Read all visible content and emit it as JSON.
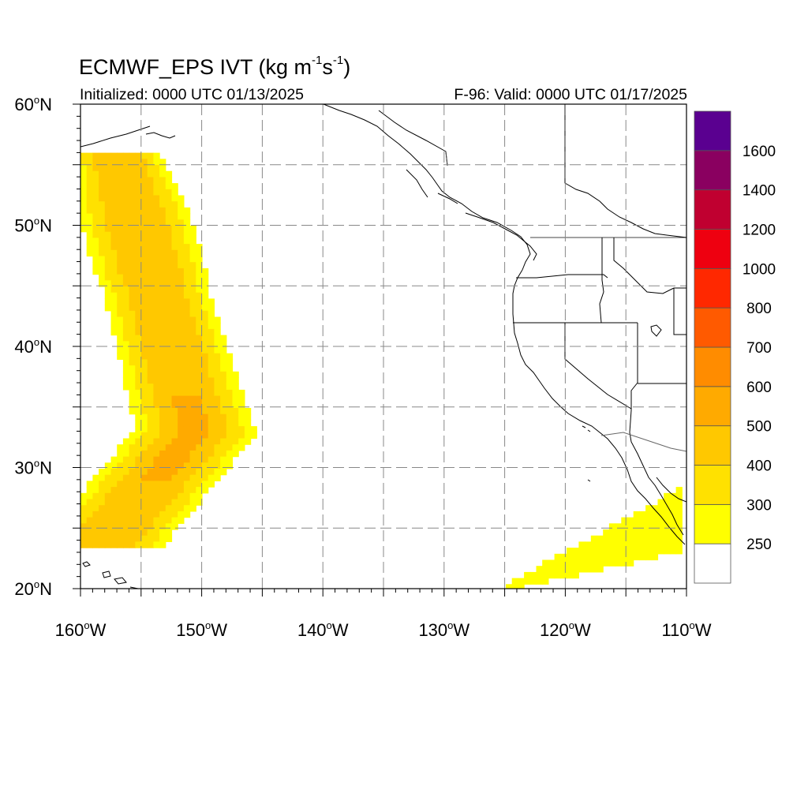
{
  "title": {
    "text": "ECMWF_EPS IVT (kg m",
    "exp1": "-1",
    "mid": "s",
    "exp2": "-1",
    "end": ")"
  },
  "subtitle_left": "Initialized: 0000 UTC 01/13/2025",
  "subtitle_right": "F-96: Valid: 0000 UTC 01/17/2025",
  "lat_labels": [
    {
      "value": 60,
      "text": "60",
      "hemi": "N"
    },
    {
      "value": 50,
      "text": "50",
      "hemi": "N"
    },
    {
      "value": 40,
      "text": "40",
      "hemi": "N"
    },
    {
      "value": 30,
      "text": "30",
      "hemi": "N"
    },
    {
      "value": 20,
      "text": "20",
      "hemi": "N"
    }
  ],
  "lon_labels": [
    {
      "value": -160,
      "text": "160",
      "hemi": "W"
    },
    {
      "value": -150,
      "text": "150",
      "hemi": "W"
    },
    {
      "value": -140,
      "text": "140",
      "hemi": "W"
    },
    {
      "value": -130,
      "text": "130",
      "hemi": "W"
    },
    {
      "value": -120,
      "text": "120",
      "hemi": "W"
    },
    {
      "value": -110,
      "text": "110",
      "hemi": "W"
    }
  ],
  "colorbar": {
    "levels": [
      "250",
      "300",
      "400",
      "500",
      "600",
      "700",
      "800",
      "1000",
      "1200",
      "1400",
      "1600"
    ],
    "colors": [
      "#ffffff",
      "#ffff00",
      "#ffe100",
      "#ffc800",
      "#ffaa00",
      "#ff8c00",
      "#ff5a00",
      "#ff2800",
      "#ee0010",
      "#c00030",
      "#8a0060",
      "#5a0090"
    ]
  },
  "chart_data": {
    "type": "heatmap",
    "title": "ECMWF_EPS IVT (kg m-1s-1)",
    "x_range": [
      -160,
      -110
    ],
    "y_range": [
      20,
      60
    ],
    "units": "kg m-1 s-1",
    "features": [
      {
        "name": "atmospheric-river-pacific",
        "peak_ivt_range": [
          500,
          600
        ],
        "approx_peak_lon": -151,
        "approx_peak_lat": 32.5
      },
      {
        "name": "moisture-plume-southern",
        "peak_ivt_range": [
          250,
          300
        ]
      }
    ]
  }
}
